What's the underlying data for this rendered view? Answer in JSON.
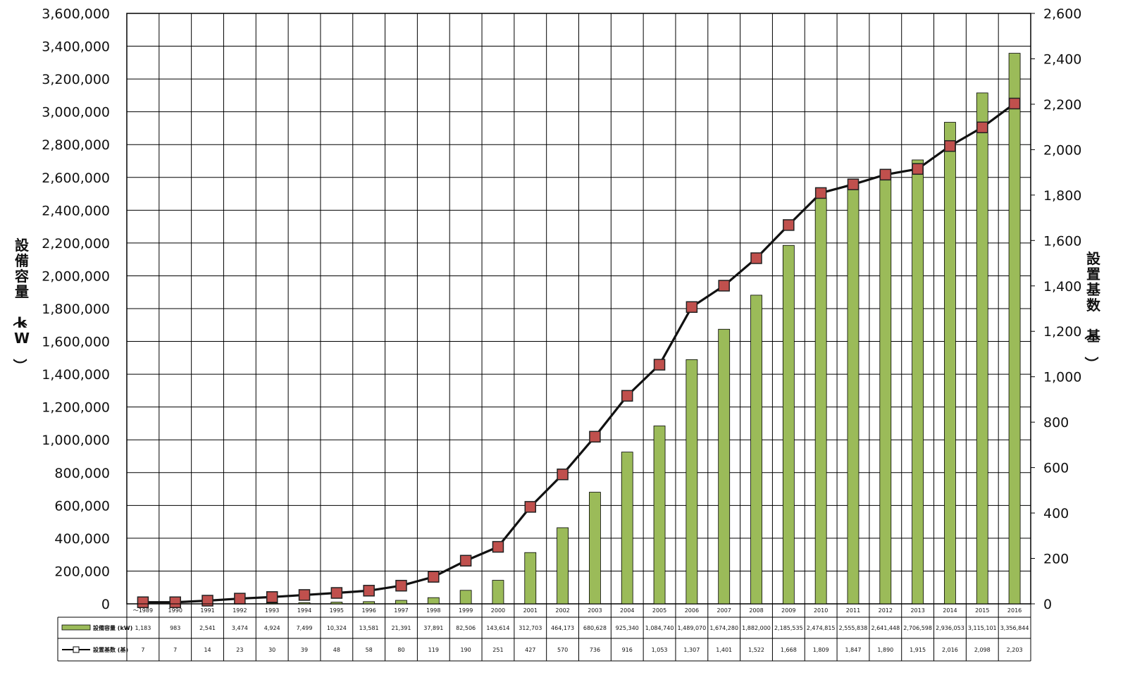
{
  "chart_data": {
    "type": "bar",
    "title": "",
    "categories": [
      "～1989",
      "1990",
      "1991",
      "1992",
      "1993",
      "1994",
      "1995",
      "1996",
      "1997",
      "1998",
      "1999",
      "2000",
      "2001",
      "2002",
      "2003",
      "2004",
      "2005",
      "2006",
      "2007",
      "2008",
      "2009",
      "2010",
      "2011",
      "2012",
      "2013",
      "2014",
      "2015",
      "2016"
    ],
    "ylabel_left": "設備容量（kW）",
    "ylabel_right": "設置基数（基）",
    "ylim_left": [
      0,
      3600000
    ],
    "ylim_right": [
      0,
      2600
    ],
    "ticks_left": [
      "0",
      "200,000",
      "400,000",
      "600,000",
      "800,000",
      "1,000,000",
      "1,200,000",
      "1,400,000",
      "1,600,000",
      "1,800,000",
      "2,000,000",
      "2,200,000",
      "2,400,000",
      "2,600,000",
      "2,800,000",
      "3,000,000",
      "3,200,000",
      "3,400,000",
      "3,600,000"
    ],
    "ticks_right": [
      "0",
      "200",
      "400",
      "600",
      "800",
      "1,000",
      "1,200",
      "1,400",
      "1,600",
      "1,800",
      "2,000",
      "2,200",
      "2,400",
      "2,600"
    ],
    "grid": true,
    "series": [
      {
        "name": "設備容量 (kW)",
        "type": "bar",
        "axis": "left",
        "color": "#9bbb59",
        "values": [
          1183,
          983,
          2541,
          3474,
          4924,
          7499,
          10324,
          13581,
          21391,
          37891,
          82506,
          143614,
          312703,
          464173,
          680628,
          925340,
          1084740,
          1489070,
          1674280,
          1882000,
          2185535,
          2474815,
          2555838,
          2641448,
          2706598,
          2936053,
          3115101,
          3356844
        ],
        "labels": [
          "1,183",
          "983",
          "2,541",
          "3,474",
          "4,924",
          "7,499",
          "10,324",
          "13,581",
          "21,391",
          "37,891",
          "82,506",
          "143,614",
          "312,703",
          "464,173",
          "680,628",
          "925,340",
          "1,084,740",
          "1,489,070",
          "1,674,280",
          "1,882,000",
          "2,185,535",
          "2,474,815",
          "2,555,838",
          "2,641,448",
          "2,706,598",
          "2,936,053",
          "3,115,101",
          "3,356,844"
        ]
      },
      {
        "name": "設置基数 (基)",
        "type": "line",
        "axis": "right",
        "line_color": "#111111",
        "marker_color": "#c0504d",
        "values": [
          7,
          7,
          14,
          23,
          30,
          39,
          48,
          58,
          80,
          119,
          190,
          251,
          427,
          570,
          736,
          916,
          1053,
          1307,
          1401,
          1522,
          1668,
          1809,
          1847,
          1890,
          1915,
          2016,
          2098,
          2203
        ],
        "labels": [
          "7",
          "7",
          "14",
          "23",
          "30",
          "39",
          "48",
          "58",
          "80",
          "119",
          "190",
          "251",
          "427",
          "570",
          "736",
          "916",
          "1,053",
          "1,307",
          "1,401",
          "1,522",
          "1,668",
          "1,809",
          "1,847",
          "1,890",
          "1,915",
          "2,016",
          "2,098",
          "2,203"
        ]
      }
    ]
  }
}
